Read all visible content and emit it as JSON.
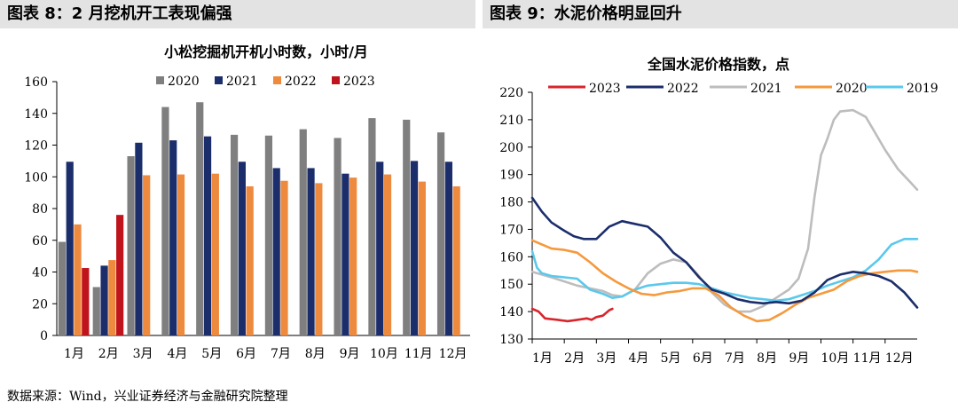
{
  "panels": {
    "left_title": "图表 8：2 月挖机开工表现偏强",
    "right_title": "图表 9：水泥价格明显回升"
  },
  "source": "数据来源：Wind，兴业证券经济与金融研究院整理",
  "chart_data": [
    {
      "type": "bar",
      "title": "小松挖掘机开机小时数，小时/月",
      "categories": [
        "1月",
        "2月",
        "3月",
        "4月",
        "5月",
        "6月",
        "7月",
        "8月",
        "9月",
        "10月",
        "11月",
        "12月"
      ],
      "ylim": [
        0,
        160
      ],
      "yticks": [
        0,
        20,
        40,
        60,
        80,
        100,
        120,
        140,
        160
      ],
      "grid": false,
      "legend_position": "top",
      "series": [
        {
          "name": "2020",
          "color": "#7f7f7f",
          "values": [
            59,
            30.5,
            113,
            144,
            147,
            126.5,
            126,
            130,
            124.5,
            137,
            136,
            128
          ]
        },
        {
          "name": "2021",
          "color": "#1b2e6b",
          "values": [
            109.5,
            44,
            121.5,
            123,
            125.5,
            109.5,
            105.5,
            105.5,
            102,
            109.5,
            110,
            109.5
          ]
        },
        {
          "name": "2022",
          "color": "#ee8a3e",
          "values": [
            70,
            47.5,
            101,
            101.5,
            102,
            94,
            97.5,
            96,
            99.5,
            101.5,
            97,
            94
          ]
        },
        {
          "name": "2023",
          "color": "#c0141c",
          "values": [
            42.5,
            76,
            null,
            null,
            null,
            null,
            null,
            null,
            null,
            null,
            null,
            null
          ]
        }
      ]
    },
    {
      "type": "line",
      "title": "全国水泥价格指数，点",
      "x_ticks": [
        "1月",
        "2月",
        "3月",
        "4月",
        "5月",
        "6月",
        "7月",
        "8月",
        "9月",
        "10月",
        "11月",
        "12月"
      ],
      "ylim": [
        130,
        220
      ],
      "yticks": [
        130,
        140,
        150,
        160,
        170,
        180,
        190,
        200,
        210,
        220
      ],
      "grid": false,
      "legend_position": "top",
      "series": [
        {
          "name": "2023",
          "color": "#d7262b",
          "x": [
            1.0,
            1.2,
            1.4,
            1.8,
            2.1,
            2.4,
            2.7,
            2.85,
            3.0,
            3.2,
            3.4,
            3.5
          ],
          "y": [
            141,
            140,
            137.5,
            137,
            136.5,
            137,
            137.5,
            137,
            138,
            138.5,
            140.5,
            141
          ]
        },
        {
          "name": "2022",
          "color": "#1b2e6b",
          "x": [
            1.0,
            1.3,
            1.6,
            2.0,
            2.3,
            2.6,
            3.0,
            3.4,
            3.8,
            4.2,
            4.6,
            5.0,
            5.4,
            5.8,
            6.2,
            6.6,
            7.0,
            7.4,
            7.8,
            8.2,
            8.6,
            9.0,
            9.4,
            9.8,
            10.2,
            10.6,
            11.0,
            11.4,
            11.8,
            12.2,
            12.6,
            13.0
          ],
          "y": [
            181.5,
            176.5,
            172.5,
            169.5,
            167.5,
            166.5,
            166.5,
            171,
            173,
            172,
            171,
            167,
            161.5,
            158,
            152.5,
            148,
            146.5,
            144.5,
            143.5,
            143,
            143.5,
            143,
            144,
            147,
            151.5,
            153.5,
            154.5,
            154,
            153,
            151,
            147,
            141.5
          ]
        },
        {
          "name": "2021",
          "color": "#bdbdbd",
          "x": [
            1.0,
            1.3,
            1.6,
            2.0,
            2.4,
            2.8,
            3.2,
            3.5,
            3.8,
            4.2,
            4.6,
            5.0,
            5.4,
            5.8,
            6.2,
            6.6,
            7.0,
            7.4,
            7.8,
            8.2,
            8.6,
            9.0,
            9.3,
            9.6,
            9.8,
            10.0,
            10.2,
            10.4,
            10.6,
            11.0,
            11.4,
            11.6,
            12.0,
            12.4,
            12.8,
            13.0
          ],
          "y": [
            154.5,
            153.5,
            152.5,
            151,
            149.5,
            148.5,
            147.5,
            146,
            145.5,
            148,
            154,
            157.5,
            159,
            158,
            153,
            147,
            142.5,
            140,
            140,
            142,
            145,
            148,
            152,
            163,
            182,
            197,
            203,
            210,
            213,
            213.5,
            211,
            207,
            199,
            192,
            187,
            184.5
          ]
        },
        {
          "name": "2020",
          "color": "#f5993d",
          "x": [
            1.0,
            1.3,
            1.6,
            2.0,
            2.4,
            2.8,
            3.2,
            3.6,
            4.0,
            4.4,
            4.8,
            5.2,
            5.6,
            6.0,
            6.4,
            6.8,
            7.2,
            7.6,
            8.0,
            8.4,
            8.8,
            9.2,
            9.6,
            10.0,
            10.4,
            10.8,
            11.2,
            11.6,
            12.0,
            12.4,
            12.8,
            13.0
          ],
          "y": [
            166,
            164.5,
            163,
            162.5,
            161.5,
            158,
            154,
            151,
            148.5,
            146.5,
            146,
            147,
            147.5,
            148.5,
            148.5,
            146,
            141.5,
            138.5,
            136.5,
            137,
            139.5,
            142.5,
            145,
            146.5,
            148,
            151,
            153,
            154,
            154.5,
            155,
            155,
            154.5
          ]
        },
        {
          "name": "2019",
          "color": "#5bc8ec",
          "x": [
            1.0,
            1.15,
            1.3,
            1.6,
            2.0,
            2.4,
            2.8,
            3.2,
            3.5,
            3.8,
            4.2,
            4.6,
            5.0,
            5.4,
            5.8,
            6.2,
            6.6,
            7.0,
            7.4,
            7.8,
            8.2,
            8.6,
            9.0,
            9.4,
            9.8,
            10.2,
            10.6,
            11.0,
            11.4,
            11.8,
            12.2,
            12.6,
            13.0
          ],
          "y": [
            162,
            156,
            154,
            153,
            152.5,
            152,
            148,
            146.5,
            145,
            145.5,
            148,
            149.5,
            150,
            150.5,
            150.5,
            150,
            148.5,
            147,
            146,
            145,
            144.5,
            144,
            144.5,
            146,
            147.5,
            149.5,
            151,
            152.5,
            155,
            159,
            164.5,
            166.5,
            166.5
          ]
        }
      ]
    }
  ]
}
